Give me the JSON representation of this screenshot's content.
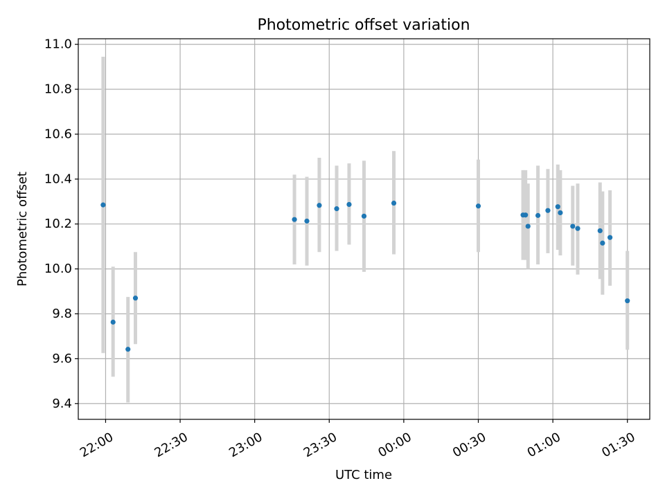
{
  "chart_data": {
    "type": "scatter",
    "title": "Photometric offset variation",
    "xlabel": "UTC time",
    "ylabel": "Photometric offset",
    "grid": true,
    "xlim": [
      "21:49",
      "01:39"
    ],
    "ylim": [
      9.33,
      11.025
    ],
    "x_ticks": [
      {
        "label": "22:00",
        "time": "22:00"
      },
      {
        "label": "22:30",
        "time": "22:30"
      },
      {
        "label": "23:00",
        "time": "23:00"
      },
      {
        "label": "23:30",
        "time": "23:30"
      },
      {
        "label": "00:00",
        "time": "00:00"
      },
      {
        "label": "00:30",
        "time": "00:30"
      },
      {
        "label": "01:00",
        "time": "01:00"
      },
      {
        "label": "01:30",
        "time": "01:30"
      }
    ],
    "y_ticks": [
      {
        "label": "9.4",
        "value": 9.4
      },
      {
        "label": "9.6",
        "value": 9.6
      },
      {
        "label": "9.8",
        "value": 9.8
      },
      {
        "label": "10.0",
        "value": 10.0
      },
      {
        "label": "10.2",
        "value": 10.2
      },
      {
        "label": "10.4",
        "value": 10.4
      },
      {
        "label": "10.6",
        "value": 10.6
      },
      {
        "label": "10.8",
        "value": 10.8
      },
      {
        "label": "11.0",
        "value": 11.0
      }
    ],
    "colors": {
      "point": "#1f77b4",
      "errorbar": "#d3d3d3",
      "grid": "#b0b0b0",
      "axes": "#000000"
    },
    "points": [
      {
        "time": "21:59",
        "y": 10.285,
        "yerr_low": 9.625,
        "yerr_high": 10.945
      },
      {
        "time": "22:03",
        "y": 9.763,
        "yerr_low": 9.52,
        "yerr_high": 10.01
      },
      {
        "time": "22:09",
        "y": 9.642,
        "yerr_low": 9.405,
        "yerr_high": 9.875
      },
      {
        "time": "22:12",
        "y": 9.87,
        "yerr_low": 9.665,
        "yerr_high": 10.075
      },
      {
        "time": "23:16",
        "y": 10.22,
        "yerr_low": 10.02,
        "yerr_high": 10.42
      },
      {
        "time": "23:21",
        "y": 10.213,
        "yerr_low": 10.015,
        "yerr_high": 10.41
      },
      {
        "time": "23:26",
        "y": 10.283,
        "yerr_low": 10.075,
        "yerr_high": 10.495
      },
      {
        "time": "23:33",
        "y": 10.268,
        "yerr_low": 10.08,
        "yerr_high": 10.46
      },
      {
        "time": "23:38",
        "y": 10.287,
        "yerr_low": 10.108,
        "yerr_high": 10.47
      },
      {
        "time": "23:44",
        "y": 10.235,
        "yerr_low": 9.987,
        "yerr_high": 10.482
      },
      {
        "time": "23:56",
        "y": 10.293,
        "yerr_low": 10.065,
        "yerr_high": 10.525
      },
      {
        "time": "00:30",
        "y": 10.28,
        "yerr_low": 10.075,
        "yerr_high": 10.487
      },
      {
        "time": "00:48",
        "y": 10.24,
        "yerr_low": 10.04,
        "yerr_high": 10.44
      },
      {
        "time": "00:49",
        "y": 10.24,
        "yerr_low": 10.04,
        "yerr_high": 10.44
      },
      {
        "time": "00:50",
        "y": 10.19,
        "yerr_low": 10.0,
        "yerr_high": 10.38
      },
      {
        "time": "00:54",
        "y": 10.238,
        "yerr_low": 10.02,
        "yerr_high": 10.46
      },
      {
        "time": "00:58",
        "y": 10.26,
        "yerr_low": 10.07,
        "yerr_high": 10.445
      },
      {
        "time": "01:02",
        "y": 10.277,
        "yerr_low": 10.085,
        "yerr_high": 10.465
      },
      {
        "time": "01:03",
        "y": 10.25,
        "yerr_low": 10.06,
        "yerr_high": 10.44
      },
      {
        "time": "01:08",
        "y": 10.19,
        "yerr_low": 10.015,
        "yerr_high": 10.37
      },
      {
        "time": "01:10",
        "y": 10.18,
        "yerr_low": 9.975,
        "yerr_high": 10.38
      },
      {
        "time": "01:19",
        "y": 10.17,
        "yerr_low": 9.955,
        "yerr_high": 10.385
      },
      {
        "time": "01:20",
        "y": 10.115,
        "yerr_low": 9.885,
        "yerr_high": 10.345
      },
      {
        "time": "01:23",
        "y": 10.14,
        "yerr_low": 9.925,
        "yerr_high": 10.35
      },
      {
        "time": "01:30",
        "y": 9.858,
        "yerr_low": 9.64,
        "yerr_high": 10.08
      }
    ]
  }
}
